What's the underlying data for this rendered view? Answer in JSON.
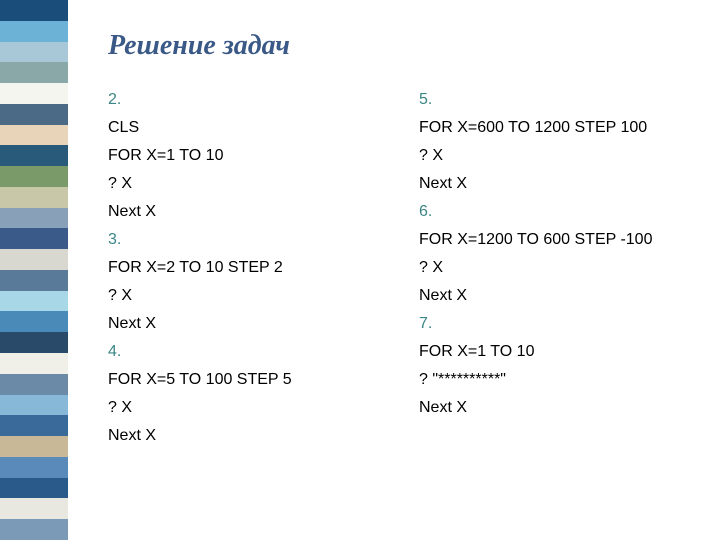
{
  "title": "Решение задач",
  "title_color": "#3b5987",
  "title_fontsize": 28,
  "title_fontfamily": "Times New Roman",
  "title_fontstyle": "italic",
  "number_color": "#3b8686",
  "text_color": "#000000",
  "text_fontsize": 16,
  "background_color": "#ffffff",
  "left_column": {
    "blocks": [
      {
        "num": "2.",
        "lines": [
          "CLS",
          "FOR X=1 TO 10",
          "? X",
          "Next X"
        ]
      },
      {
        "num": "3.",
        "lines": [
          "FOR X=2 TO 10 STEP 2",
          "? X",
          "Next X"
        ]
      },
      {
        "num": "4.",
        "lines": [
          "FOR X=5 TO 100 STEP 5",
          "? X",
          "Next X"
        ]
      }
    ]
  },
  "right_column": {
    "blocks": [
      {
        "num": "5.",
        "lines": [
          "FOR X=600 TO 1200 STEP 100",
          "? X",
          "Next X"
        ]
      },
      {
        "num": "6.",
        "lines": [
          "FOR X=1200 TO 600 STEP -100",
          "? X",
          "Next X"
        ]
      },
      {
        "num": "7.",
        "lines": [
          "FOR X=1 TO 10",
          "? \"**********\"",
          "Next X"
        ]
      }
    ]
  },
  "sidebar_stripes": [
    "#1a4d7a",
    "#6bb2d6",
    "#a8c8d8",
    "#8ba8a8",
    "#f5f5f0",
    "#4a6a85",
    "#e8d4b8",
    "#2a5a7a",
    "#7a9a6a",
    "#c8c8a8",
    "#88a0b8",
    "#3a5a8a",
    "#d8d8d0",
    "#5a7a9a",
    "#a8d8e8",
    "#4a8ab8",
    "#2a4a6a",
    "#f0f0e8",
    "#6a8aa8",
    "#88b8d8",
    "#3a6a9a",
    "#c8b898",
    "#5a8aba",
    "#2a5a8a",
    "#e8e8e0",
    "#7a9ab8"
  ]
}
